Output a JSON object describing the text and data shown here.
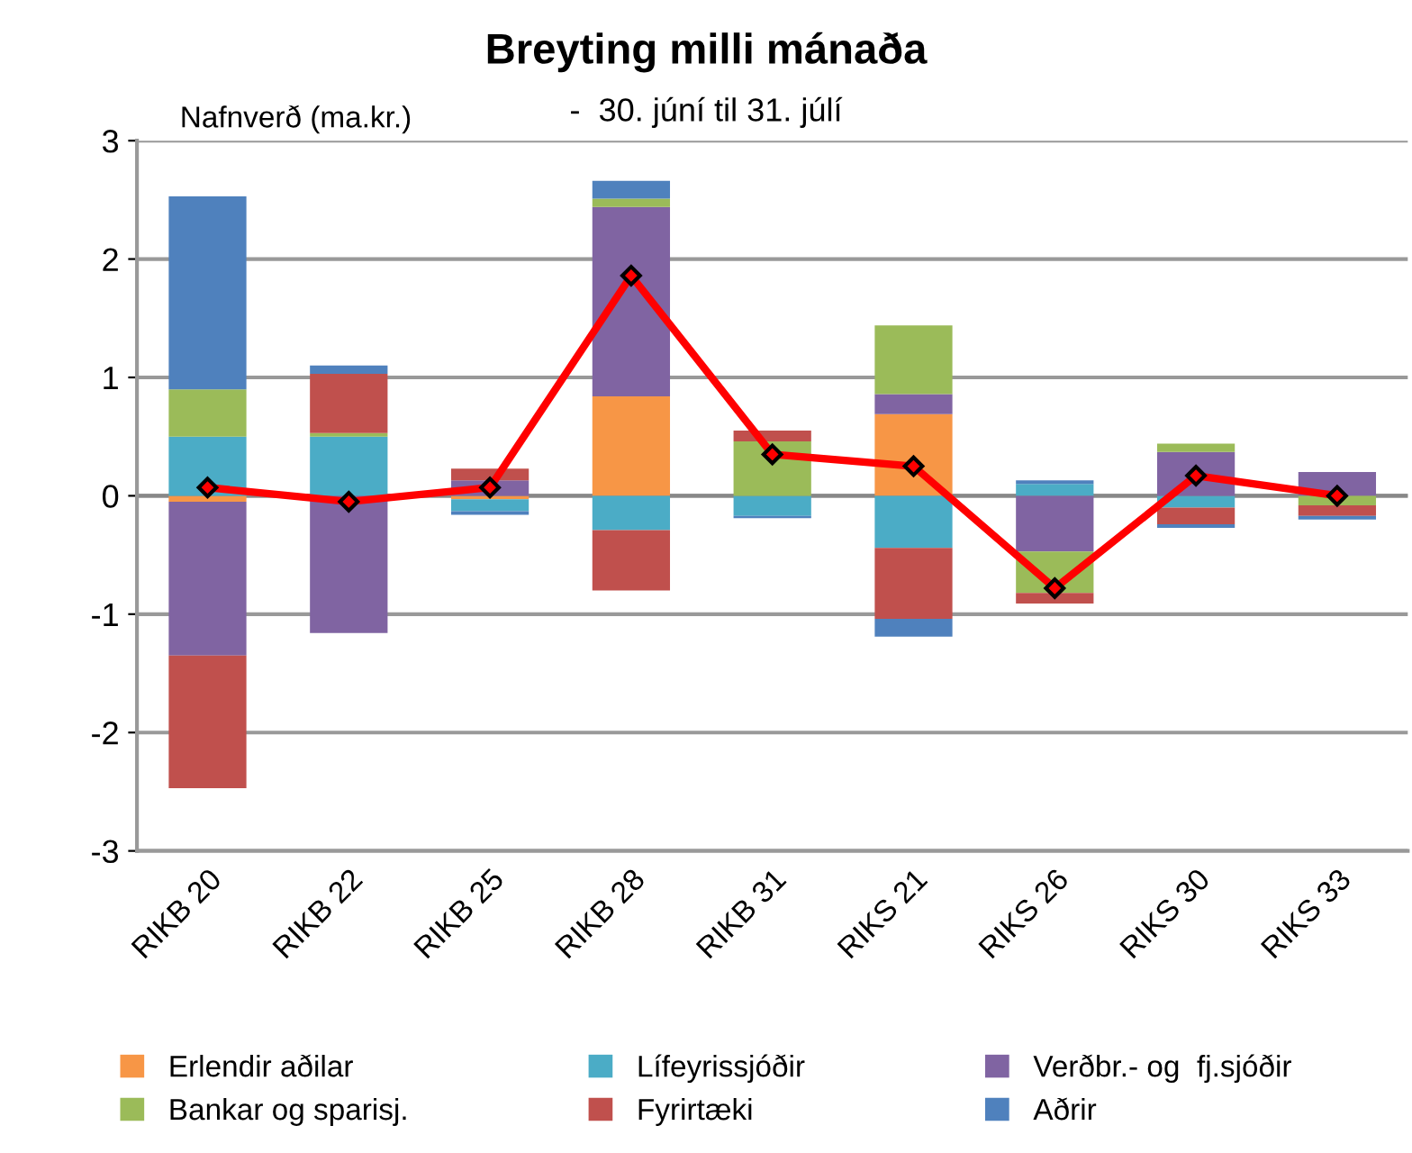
{
  "chart_data": {
    "type": "bar",
    "stacked": true,
    "title": "Breyting milli mánaða",
    "subtitle": "-  30. júní til 31. júlí",
    "ylabel": "Nafnverð (ma.kr.)",
    "categories": [
      "RIKB 20",
      "RIKB 22",
      "RIKB 25",
      "RIKB 28",
      "RIKB 31",
      "RIKS 21",
      "RIKS 26",
      "RIKS 30",
      "RIKS 33"
    ],
    "series": [
      {
        "name": "Erlendir aðilar",
        "color": "#f79646",
        "values": [
          -0.05,
          0,
          -0.03,
          0.84,
          0,
          0.69,
          0,
          0,
          0
        ]
      },
      {
        "name": "Lífeyrissjóðir",
        "color": "#4bacc6",
        "values": [
          0.5,
          0.5,
          -0.1,
          -0.29,
          -0.17,
          -0.44,
          0.1,
          -0.1,
          0
        ]
      },
      {
        "name": "Verðbr.- og  fj.sjóðir",
        "color": "#8064a2",
        "values": [
          -1.3,
          -1.16,
          0.13,
          1.6,
          0,
          0.17,
          -0.47,
          0.37,
          0.2
        ]
      },
      {
        "name": "Bankar og sparisj.",
        "color": "#9bbb59",
        "values": [
          0.4,
          0.03,
          0,
          0.07,
          0.46,
          0.58,
          -0.35,
          0.07,
          -0.08
        ]
      },
      {
        "name": "Fyrirtæki",
        "color": "#c0504d",
        "values": [
          -1.12,
          0.5,
          0.1,
          -0.51,
          0.09,
          -0.6,
          -0.09,
          -0.14,
          -0.09
        ]
      },
      {
        "name": "Aðrir",
        "color": "#4f81bd",
        "values": [
          1.63,
          0.07,
          -0.03,
          0.15,
          -0.02,
          -0.15,
          0.03,
          -0.03,
          -0.03
        ]
      },
      {
        "type": "line",
        "color": "#ff0000",
        "marker": "diamond",
        "values": [
          0.07,
          -0.05,
          0.07,
          1.86,
          0.35,
          0.25,
          -0.78,
          0.17,
          0.0
        ]
      }
    ],
    "ylim": [
      -3,
      3
    ],
    "yticks": [
      -3,
      -2,
      -1,
      0,
      1,
      2,
      3
    ],
    "grid": "y",
    "legend": "bottom"
  }
}
